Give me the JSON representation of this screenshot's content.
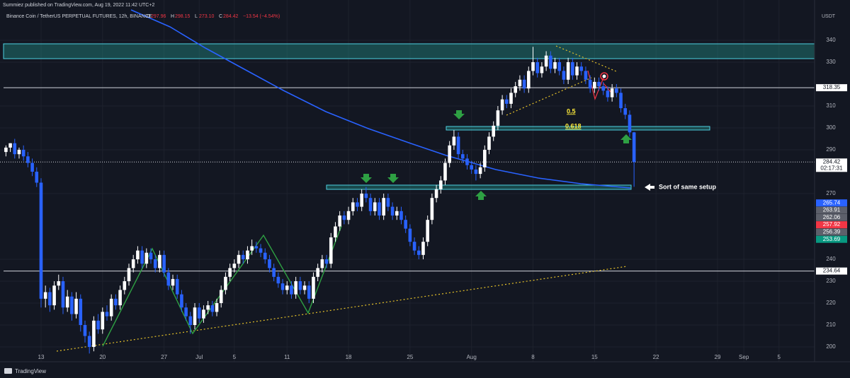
{
  "header": {
    "publisher": "Summiez published on TradingView.com, Aug 19, 2022 11:42 UTC+2",
    "brand": "TradingView"
  },
  "chart_data": {
    "type": "candlestick",
    "title": "Binance Coin / TetherUS PERPETUAL FUTURES, 12h, BINANCE",
    "ohlc_legend": [
      {
        "key": "O",
        "value": "297.96"
      },
      {
        "key": "H",
        "value": "298.15"
      },
      {
        "key": "L",
        "value": "273.10"
      },
      {
        "key": "C",
        "value": "284.42"
      }
    ],
    "change": "−13.54 (−4.54%)",
    "y_unit": "USDT",
    "up_color": "#ffffff",
    "down_color": "#2962ff",
    "grid": true,
    "candles": [
      [
        289,
        292,
        287,
        291
      ],
      [
        291,
        293,
        289,
        293
      ],
      [
        293,
        295,
        286,
        288
      ],
      [
        288,
        291,
        286,
        290
      ],
      [
        290,
        292,
        285,
        287
      ],
      [
        287,
        289,
        282,
        284
      ],
      [
        284,
        286,
        278,
        280
      ],
      [
        280,
        282,
        273,
        275
      ],
      [
        275,
        277,
        218,
        222
      ],
      [
        222,
        228,
        218,
        225
      ],
      [
        225,
        227,
        216,
        219
      ],
      [
        219,
        230,
        217,
        228
      ],
      [
        228,
        233,
        226,
        230
      ],
      [
        230,
        232,
        215,
        218
      ],
      [
        218,
        226,
        216,
        223
      ],
      [
        223,
        225,
        212,
        215
      ],
      [
        215,
        225,
        213,
        222
      ],
      [
        222,
        224,
        207,
        210
      ],
      [
        210,
        212,
        202,
        205
      ],
      [
        205,
        207,
        197,
        200
      ],
      [
        200,
        214,
        198,
        212
      ],
      [
        212,
        215,
        206,
        208
      ],
      [
        208,
        218,
        206,
        216
      ],
      [
        216,
        219,
        212,
        214
      ],
      [
        214,
        224,
        212,
        222
      ],
      [
        222,
        224,
        217,
        219
      ],
      [
        219,
        228,
        217,
        226
      ],
      [
        226,
        232,
        224,
        230
      ],
      [
        230,
        238,
        228,
        236
      ],
      [
        236,
        242,
        234,
        240
      ],
      [
        240,
        246,
        238,
        244
      ],
      [
        244,
        246,
        236,
        238
      ],
      [
        238,
        245,
        236,
        243
      ],
      [
        243,
        245,
        238,
        240
      ],
      [
        240,
        242,
        234,
        236
      ],
      [
        236,
        244,
        234,
        242
      ],
      [
        242,
        244,
        232,
        234
      ],
      [
        234,
        236,
        226,
        228
      ],
      [
        228,
        233,
        226,
        231
      ],
      [
        231,
        233,
        222,
        224
      ],
      [
        224,
        226,
        216,
        218
      ],
      [
        218,
        220,
        212,
        214
      ],
      [
        214,
        216,
        206,
        210
      ],
      [
        210,
        220,
        208,
        218
      ],
      [
        218,
        220,
        211,
        213
      ],
      [
        213,
        219,
        211,
        217
      ],
      [
        217,
        221,
        215,
        219
      ],
      [
        219,
        221,
        214,
        216
      ],
      [
        216,
        222,
        214,
        220
      ],
      [
        220,
        228,
        218,
        226
      ],
      [
        226,
        234,
        224,
        232
      ],
      [
        232,
        238,
        230,
        236
      ],
      [
        236,
        240,
        234,
        238
      ],
      [
        238,
        244,
        236,
        242
      ],
      [
        242,
        244,
        238,
        240
      ],
      [
        240,
        246,
        238,
        244
      ],
      [
        244,
        249,
        242,
        246
      ],
      [
        246,
        248,
        243,
        245
      ],
      [
        245,
        247,
        241,
        243
      ],
      [
        243,
        245,
        238,
        240
      ],
      [
        240,
        242,
        234,
        236
      ],
      [
        236,
        238,
        230,
        232
      ],
      [
        232,
        234,
        227,
        229
      ],
      [
        229,
        231,
        224,
        226
      ],
      [
        226,
        230,
        224,
        228
      ],
      [
        228,
        230,
        222,
        224
      ],
      [
        224,
        232,
        222,
        230
      ],
      [
        230,
        232,
        224,
        226
      ],
      [
        226,
        230,
        224,
        228
      ],
      [
        228,
        230,
        220,
        222
      ],
      [
        222,
        234,
        220,
        232
      ],
      [
        232,
        238,
        230,
        236
      ],
      [
        236,
        242,
        234,
        240
      ],
      [
        240,
        242,
        236,
        238
      ],
      [
        238,
        252,
        236,
        250
      ],
      [
        250,
        257,
        248,
        255
      ],
      [
        255,
        262,
        253,
        260
      ],
      [
        260,
        262,
        256,
        258
      ],
      [
        258,
        264,
        256,
        262
      ],
      [
        262,
        268,
        260,
        266
      ],
      [
        266,
        268,
        262,
        264
      ],
      [
        264,
        272,
        262,
        270
      ],
      [
        270,
        273,
        266,
        268
      ],
      [
        268,
        270,
        260,
        262
      ],
      [
        262,
        268,
        260,
        266
      ],
      [
        266,
        268,
        258,
        260
      ],
      [
        260,
        270,
        258,
        268
      ],
      [
        268,
        270,
        262,
        264
      ],
      [
        264,
        266,
        258,
        260
      ],
      [
        260,
        264,
        258,
        262
      ],
      [
        262,
        264,
        256,
        258
      ],
      [
        258,
        260,
        252,
        254
      ],
      [
        254,
        256,
        246,
        248
      ],
      [
        248,
        250,
        242,
        244
      ],
      [
        244,
        246,
        240,
        242
      ],
      [
        242,
        250,
        240,
        248
      ],
      [
        248,
        260,
        246,
        258
      ],
      [
        258,
        270,
        256,
        268
      ],
      [
        268,
        274,
        266,
        272
      ],
      [
        272,
        278,
        270,
        276
      ],
      [
        276,
        286,
        274,
        284
      ],
      [
        284,
        294,
        282,
        292
      ],
      [
        292,
        299,
        290,
        296
      ],
      [
        296,
        298,
        286,
        288
      ],
      [
        288,
        290,
        284,
        286
      ],
      [
        286,
        288,
        281,
        283
      ],
      [
        283,
        285,
        279,
        281
      ],
      [
        281,
        283,
        276,
        279
      ],
      [
        279,
        284,
        277,
        282
      ],
      [
        282,
        292,
        280,
        290
      ],
      [
        290,
        298,
        288,
        296
      ],
      [
        296,
        303,
        294,
        301
      ],
      [
        301,
        310,
        299,
        308
      ],
      [
        308,
        315,
        306,
        313
      ],
      [
        313,
        315,
        309,
        311
      ],
      [
        311,
        318,
        309,
        316
      ],
      [
        316,
        321,
        314,
        319
      ],
      [
        319,
        324,
        317,
        322
      ],
      [
        322,
        324,
        316,
        318
      ],
      [
        318,
        328,
        316,
        326
      ],
      [
        326,
        337,
        324,
        330
      ],
      [
        330,
        332,
        323,
        325
      ],
      [
        325,
        330,
        323,
        328
      ],
      [
        328,
        335,
        326,
        333
      ],
      [
        333,
        335,
        325,
        327
      ],
      [
        327,
        332,
        325,
        330
      ],
      [
        330,
        332,
        324,
        326
      ],
      [
        326,
        328,
        320,
        322
      ],
      [
        322,
        332,
        320,
        330
      ],
      [
        330,
        332,
        322,
        324
      ],
      [
        324,
        330,
        322,
        328
      ],
      [
        328,
        330,
        324,
        326
      ],
      [
        326,
        328,
        320,
        322
      ],
      [
        322,
        324,
        316,
        318
      ],
      [
        318,
        323,
        316,
        321
      ],
      [
        321,
        323,
        317,
        319
      ],
      [
        319,
        321,
        315,
        317
      ],
      [
        317,
        319,
        312,
        314
      ],
      [
        314,
        320,
        312,
        318
      ],
      [
        318,
        320,
        314,
        316
      ],
      [
        316,
        318,
        307,
        309
      ],
      [
        309,
        311,
        304,
        306
      ],
      [
        306,
        308,
        296,
        297.96
      ],
      [
        297.96,
        298.15,
        273.1,
        284.42
      ]
    ],
    "xlim": [
      -1.35,
      184.1
    ],
    "xticks": [
      {
        "value": 8,
        "label": "13"
      },
      {
        "value": 22,
        "label": "20"
      },
      {
        "value": 36,
        "label": "27"
      },
      {
        "value": 44,
        "label": "Jul"
      },
      {
        "value": 52,
        "label": "5"
      },
      {
        "value": 64,
        "label": "11"
      },
      {
        "value": 78,
        "label": "18"
      },
      {
        "value": 92,
        "label": "25"
      },
      {
        "value": 106,
        "label": "Aug"
      },
      {
        "value": 120,
        "label": "8"
      },
      {
        "value": 134,
        "label": "15"
      },
      {
        "value": 148,
        "label": "22"
      },
      {
        "value": 162,
        "label": "29"
      },
      {
        "value": 168,
        "label": "Sep"
      },
      {
        "value": 176,
        "label": "5"
      }
    ],
    "ylim": [
      193.23,
      358.39
    ],
    "yticks": [
      200,
      210,
      220,
      230,
      240,
      270,
      290,
      300,
      310,
      330,
      340
    ],
    "levels": [
      318.35,
      234.64
    ],
    "current_price": 284.42,
    "countdown": "02:17:31",
    "price_labels": [
      {
        "value": 265.74,
        "color": "#2962ff"
      },
      {
        "value": 263.91,
        "color": "#5d606b"
      },
      {
        "value": 262.06,
        "color": "#5d606b"
      },
      {
        "value": 257.92,
        "color": "#f23645"
      },
      {
        "value": 256.39,
        "color": "#5d606b"
      },
      {
        "value": 253.69,
        "color": "#089981"
      }
    ],
    "annotations": {
      "fib_half": "0.5",
      "fib_618": "0.618",
      "note": "Sort of same setup"
    }
  }
}
